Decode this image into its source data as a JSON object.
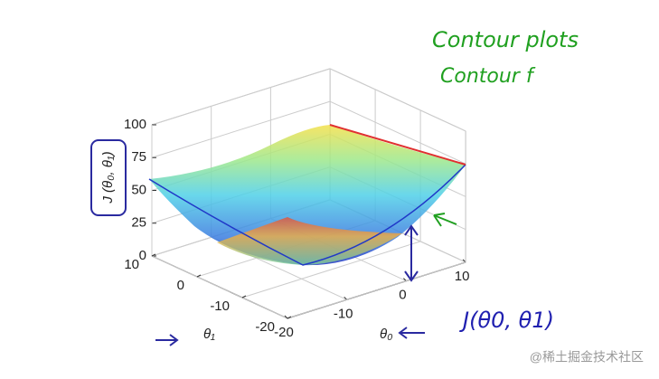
{
  "chart_data": {
    "type": "surface",
    "zlabel": "J (θ₀, θ₁)",
    "xlabel": "θ₀",
    "ylabel": "θ₁",
    "xlim": [
      -20,
      10
    ],
    "xticks": [
      -20,
      -10,
      0,
      10
    ],
    "ylim": [
      -20,
      10
    ],
    "yticks": [
      -20,
      -10,
      0,
      10
    ],
    "zlim": [
      0,
      100
    ],
    "zticks": [
      0,
      25,
      50,
      75,
      100
    ],
    "grid": true,
    "annotations": [
      "Contour plots",
      "Contour f",
      "J(θ0, θ1)"
    ],
    "watermark": "@稀土掘金技术社区"
  }
}
